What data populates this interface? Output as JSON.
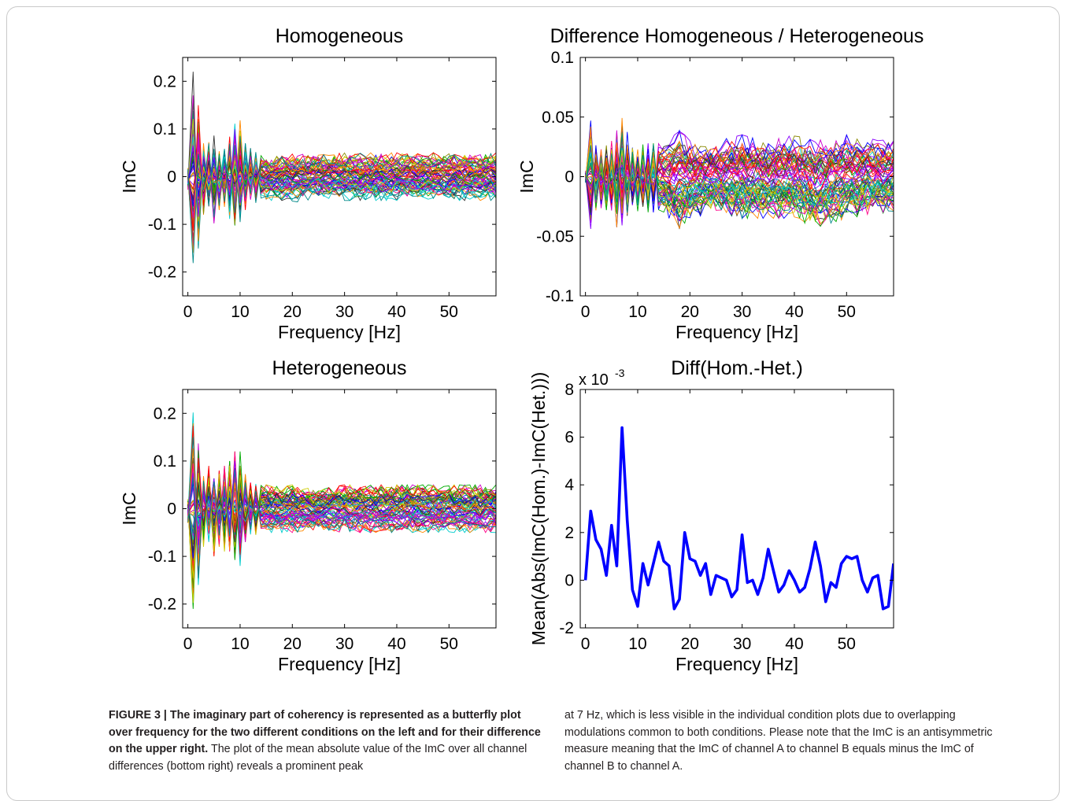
{
  "colors": {
    "axis": "#000000",
    "mean_line": "#0000ff",
    "palette": [
      "#0000ff",
      "#00aa00",
      "#ff0000",
      "#00cccc",
      "#cc00cc",
      "#cccc00",
      "#333333",
      "#ff8800",
      "#8800ff",
      "#008888",
      "#888800",
      "#ff0088"
    ]
  },
  "chart_data": [
    {
      "type": "line",
      "title": "Homogeneous",
      "xlabel": "Frequency [Hz]",
      "ylabel": "ImC",
      "xlim": [
        -1,
        59
      ],
      "ylim": [
        -0.25,
        0.25
      ],
      "xticks": [
        0,
        10,
        20,
        30,
        40,
        50
      ],
      "yticks": [
        -0.2,
        -0.1,
        0,
        0.1,
        0.2
      ],
      "ytick_labels": [
        "-0.2",
        "-0.1",
        "0",
        "0.1",
        "0.2"
      ],
      "description": "butterfly plot of ImC over frequency for all channel pairs",
      "envelope": {
        "x": [
          0,
          1,
          2,
          3,
          4,
          5,
          6,
          7,
          8,
          9,
          10,
          11,
          12,
          14,
          16,
          18,
          20,
          25,
          30,
          40,
          50,
          58
        ],
        "max": [
          0.02,
          0.22,
          0.15,
          0.07,
          0.08,
          0.09,
          0.07,
          0.08,
          0.1,
          0.13,
          0.12,
          0.07,
          0.06,
          0.05,
          0.04,
          0.045,
          0.05,
          0.045,
          0.05,
          0.05,
          0.05,
          0.05
        ],
        "min": [
          -0.03,
          -0.22,
          -0.16,
          -0.08,
          -0.07,
          -0.11,
          -0.08,
          -0.08,
          -0.1,
          -0.12,
          -0.12,
          -0.07,
          -0.06,
          -0.05,
          -0.05,
          -0.05,
          -0.055,
          -0.045,
          -0.05,
          -0.05,
          -0.05,
          -0.05
        ]
      }
    },
    {
      "type": "line",
      "title": "Difference Homogeneous / Heterogeneous",
      "xlabel": "Frequency [Hz]",
      "ylabel": "ImC",
      "xlim": [
        -1,
        59
      ],
      "ylim": [
        -0.1,
        0.1
      ],
      "xticks": [
        0,
        10,
        20,
        30,
        40,
        50
      ],
      "yticks": [
        -0.1,
        -0.05,
        0,
        0.05,
        0.1
      ],
      "ytick_labels": [
        "-0.1",
        "-0.05",
        "0",
        "0.05",
        "0.1"
      ],
      "description": "butterfly plot of ImC difference between conditions for all channel pairs",
      "envelope": {
        "x": [
          0,
          1,
          2,
          3,
          5,
          7,
          9,
          12,
          15,
          18,
          20,
          25,
          30,
          35,
          40,
          44,
          50,
          58
        ],
        "max": [
          0.005,
          0.047,
          0.03,
          0.025,
          0.03,
          0.05,
          0.025,
          0.028,
          0.028,
          0.04,
          0.03,
          0.03,
          0.035,
          0.03,
          0.035,
          0.03,
          0.035,
          0.03
        ],
        "min": [
          -0.005,
          -0.047,
          -0.03,
          -0.03,
          -0.035,
          -0.05,
          -0.03,
          -0.03,
          -0.03,
          -0.045,
          -0.035,
          -0.03,
          -0.035,
          -0.035,
          -0.035,
          -0.043,
          -0.035,
          -0.03
        ]
      }
    },
    {
      "type": "line",
      "title": "Heterogeneous",
      "xlabel": "Frequency [Hz]",
      "ylabel": "ImC",
      "xlim": [
        -1,
        59
      ],
      "ylim": [
        -0.25,
        0.25
      ],
      "xticks": [
        0,
        10,
        20,
        30,
        40,
        50
      ],
      "yticks": [
        -0.2,
        -0.1,
        0,
        0.1,
        0.2
      ],
      "ytick_labels": [
        "-0.2",
        "-0.1",
        "0",
        "0.1",
        "0.2"
      ],
      "description": "butterfly plot of ImC over frequency for all channel pairs",
      "envelope": {
        "x": [
          0,
          1,
          2,
          3,
          4,
          5,
          6,
          7,
          8,
          9,
          10,
          11,
          12,
          14,
          16,
          18,
          20,
          25,
          30,
          40,
          50,
          58
        ],
        "max": [
          0.02,
          0.21,
          0.15,
          0.07,
          0.09,
          0.08,
          0.08,
          0.09,
          0.1,
          0.12,
          0.12,
          0.08,
          0.06,
          0.05,
          0.05,
          0.045,
          0.05,
          0.04,
          0.05,
          0.05,
          0.05,
          0.05
        ],
        "min": [
          -0.03,
          -0.21,
          -0.16,
          -0.08,
          -0.07,
          -0.1,
          -0.08,
          -0.09,
          -0.1,
          -0.12,
          -0.12,
          -0.07,
          -0.06,
          -0.05,
          -0.05,
          -0.05,
          -0.05,
          -0.045,
          -0.05,
          -0.05,
          -0.05,
          -0.05
        ]
      }
    },
    {
      "type": "line",
      "title": "Diff(Hom.-Het.)",
      "xlabel": "Frequency [Hz]",
      "ylabel": "Mean(Abs(ImC(Hom.)-ImC(Het.)))",
      "ylabel_multiplier": "x 10",
      "ylabel_multiplier_exponent": "-3",
      "xlim": [
        -1,
        59
      ],
      "ylim": [
        -2,
        8
      ],
      "xticks": [
        0,
        10,
        20,
        30,
        40,
        50
      ],
      "yticks": [
        -2,
        0,
        2,
        4,
        6,
        8
      ],
      "ytick_labels": [
        "-2",
        "0",
        "2",
        "4",
        "6",
        "8"
      ],
      "series": [
        {
          "x": [
            0,
            1,
            2,
            3,
            4,
            5,
            6,
            7,
            8,
            9,
            10,
            11,
            12,
            13,
            14,
            15,
            16,
            17,
            18,
            19,
            20,
            21,
            22,
            23,
            24,
            25,
            26,
            27,
            28,
            29,
            30,
            31,
            32,
            33,
            34,
            35,
            36,
            37,
            38,
            39,
            40,
            41,
            42,
            43,
            44,
            45,
            46,
            47,
            48,
            49,
            50,
            51,
            52,
            53,
            54,
            55,
            56,
            57,
            58,
            59
          ],
          "y": [
            0,
            2.9,
            1.7,
            1.3,
            0.2,
            2.3,
            0.6,
            6.4,
            2.5,
            -0.4,
            -1.1,
            0.7,
            -0.2,
            0.7,
            1.6,
            0.8,
            0.6,
            -1.2,
            -0.8,
            2,
            0.9,
            0.8,
            0.2,
            0.7,
            -0.6,
            0.2,
            0.1,
            0,
            -0.7,
            -0.4,
            1.9,
            -0.1,
            0,
            -0.6,
            0.1,
            1.3,
            0.4,
            -0.5,
            -0.2,
            0.4,
            0,
            -0.5,
            -0.3,
            0.5,
            1.6,
            0.6,
            -0.9,
            -0.1,
            -0.3,
            0.7,
            1,
            0.9,
            1,
            0,
            -0.5,
            0.1,
            0.2,
            -1.2,
            -1.1,
            0.7
          ]
        }
      ]
    }
  ],
  "caption": {
    "label": "FIGURE 3 | ",
    "bold": "The imaginary part of coherency is represented as a butterfly plot over frequency for the two different conditions on the left and for their difference on the upper right.",
    "text_left": " The plot of the mean absolute value of the ImC over all channel differences (bottom right) reveals a prominent peak",
    "text_right": "at 7 Hz, which is less visible in the individual condition plots due to overlapping modulations common to both conditions. Please note that the ImC is an antisymmetric measure meaning that the ImC of channel A to channel B equals minus the ImC of channel B to channel A."
  }
}
